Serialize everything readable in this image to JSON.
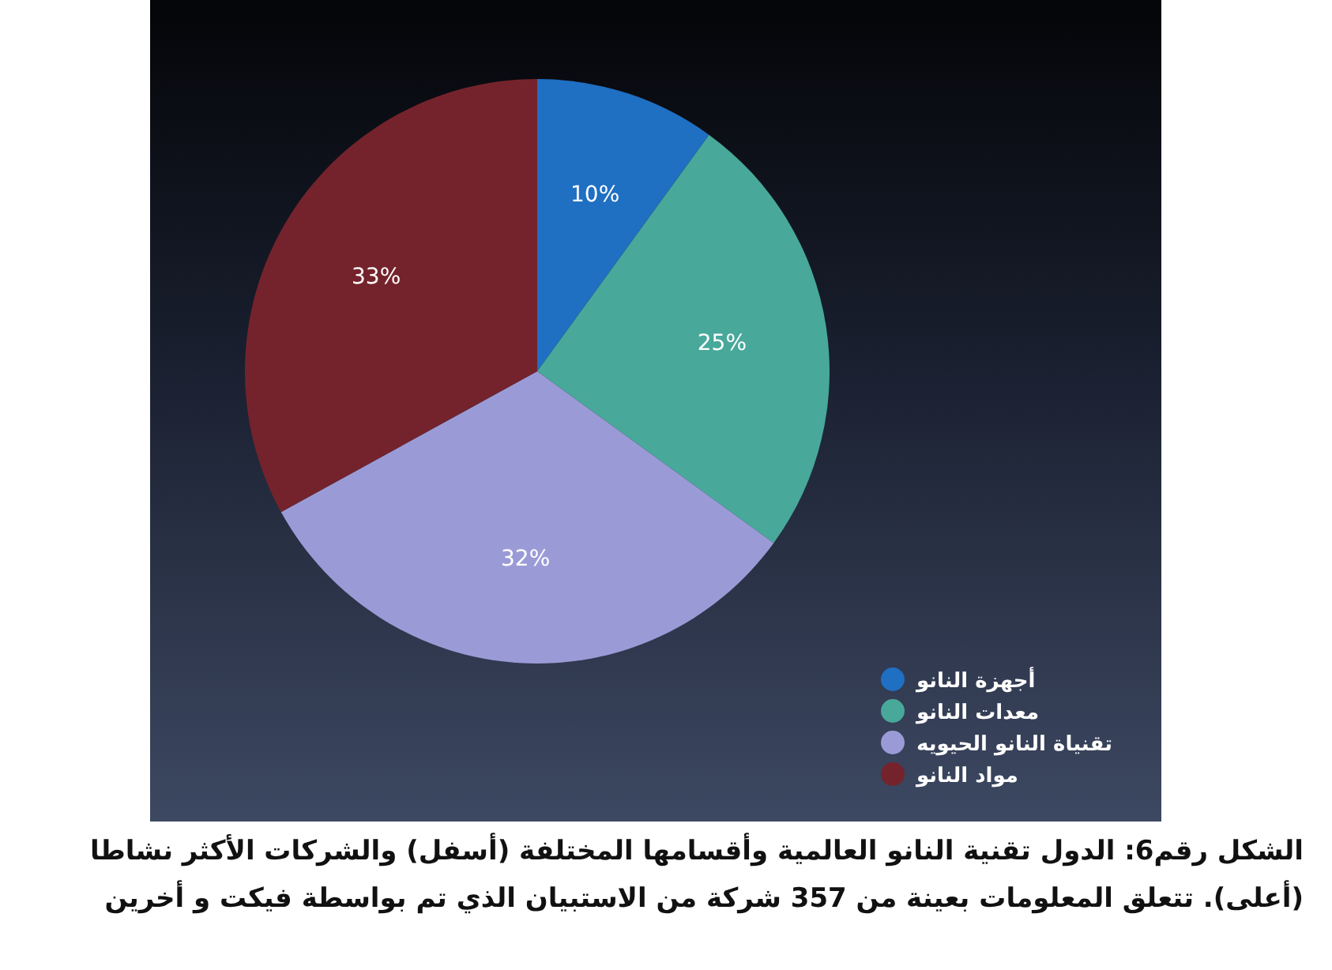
{
  "chart_data": {
    "type": "pie",
    "categories": [
      "أجهزة النانو",
      "معدات النانو",
      "تقنياة النانو الحيويه",
      "مواد النانو"
    ],
    "values": [
      10,
      25,
      32,
      33
    ],
    "colors": [
      "#1f6fc2",
      "#48a89a",
      "#9a9bd6",
      "#74232c"
    ],
    "value_labels": [
      "10%",
      "25%",
      "32%",
      "33%"
    ],
    "legend": "bottom right",
    "annotations": [
      "الشكل رقم6: الدول تقنية النانو العالمية وأقسامها المختلفة (أسفل) والشركات الأكثر نشاطا (أعلى). تتعلق المعلومات بعينة من 357 شركة من الاستبيان الذي تم بواسطة فيكت و أخرين"
    ]
  }
}
